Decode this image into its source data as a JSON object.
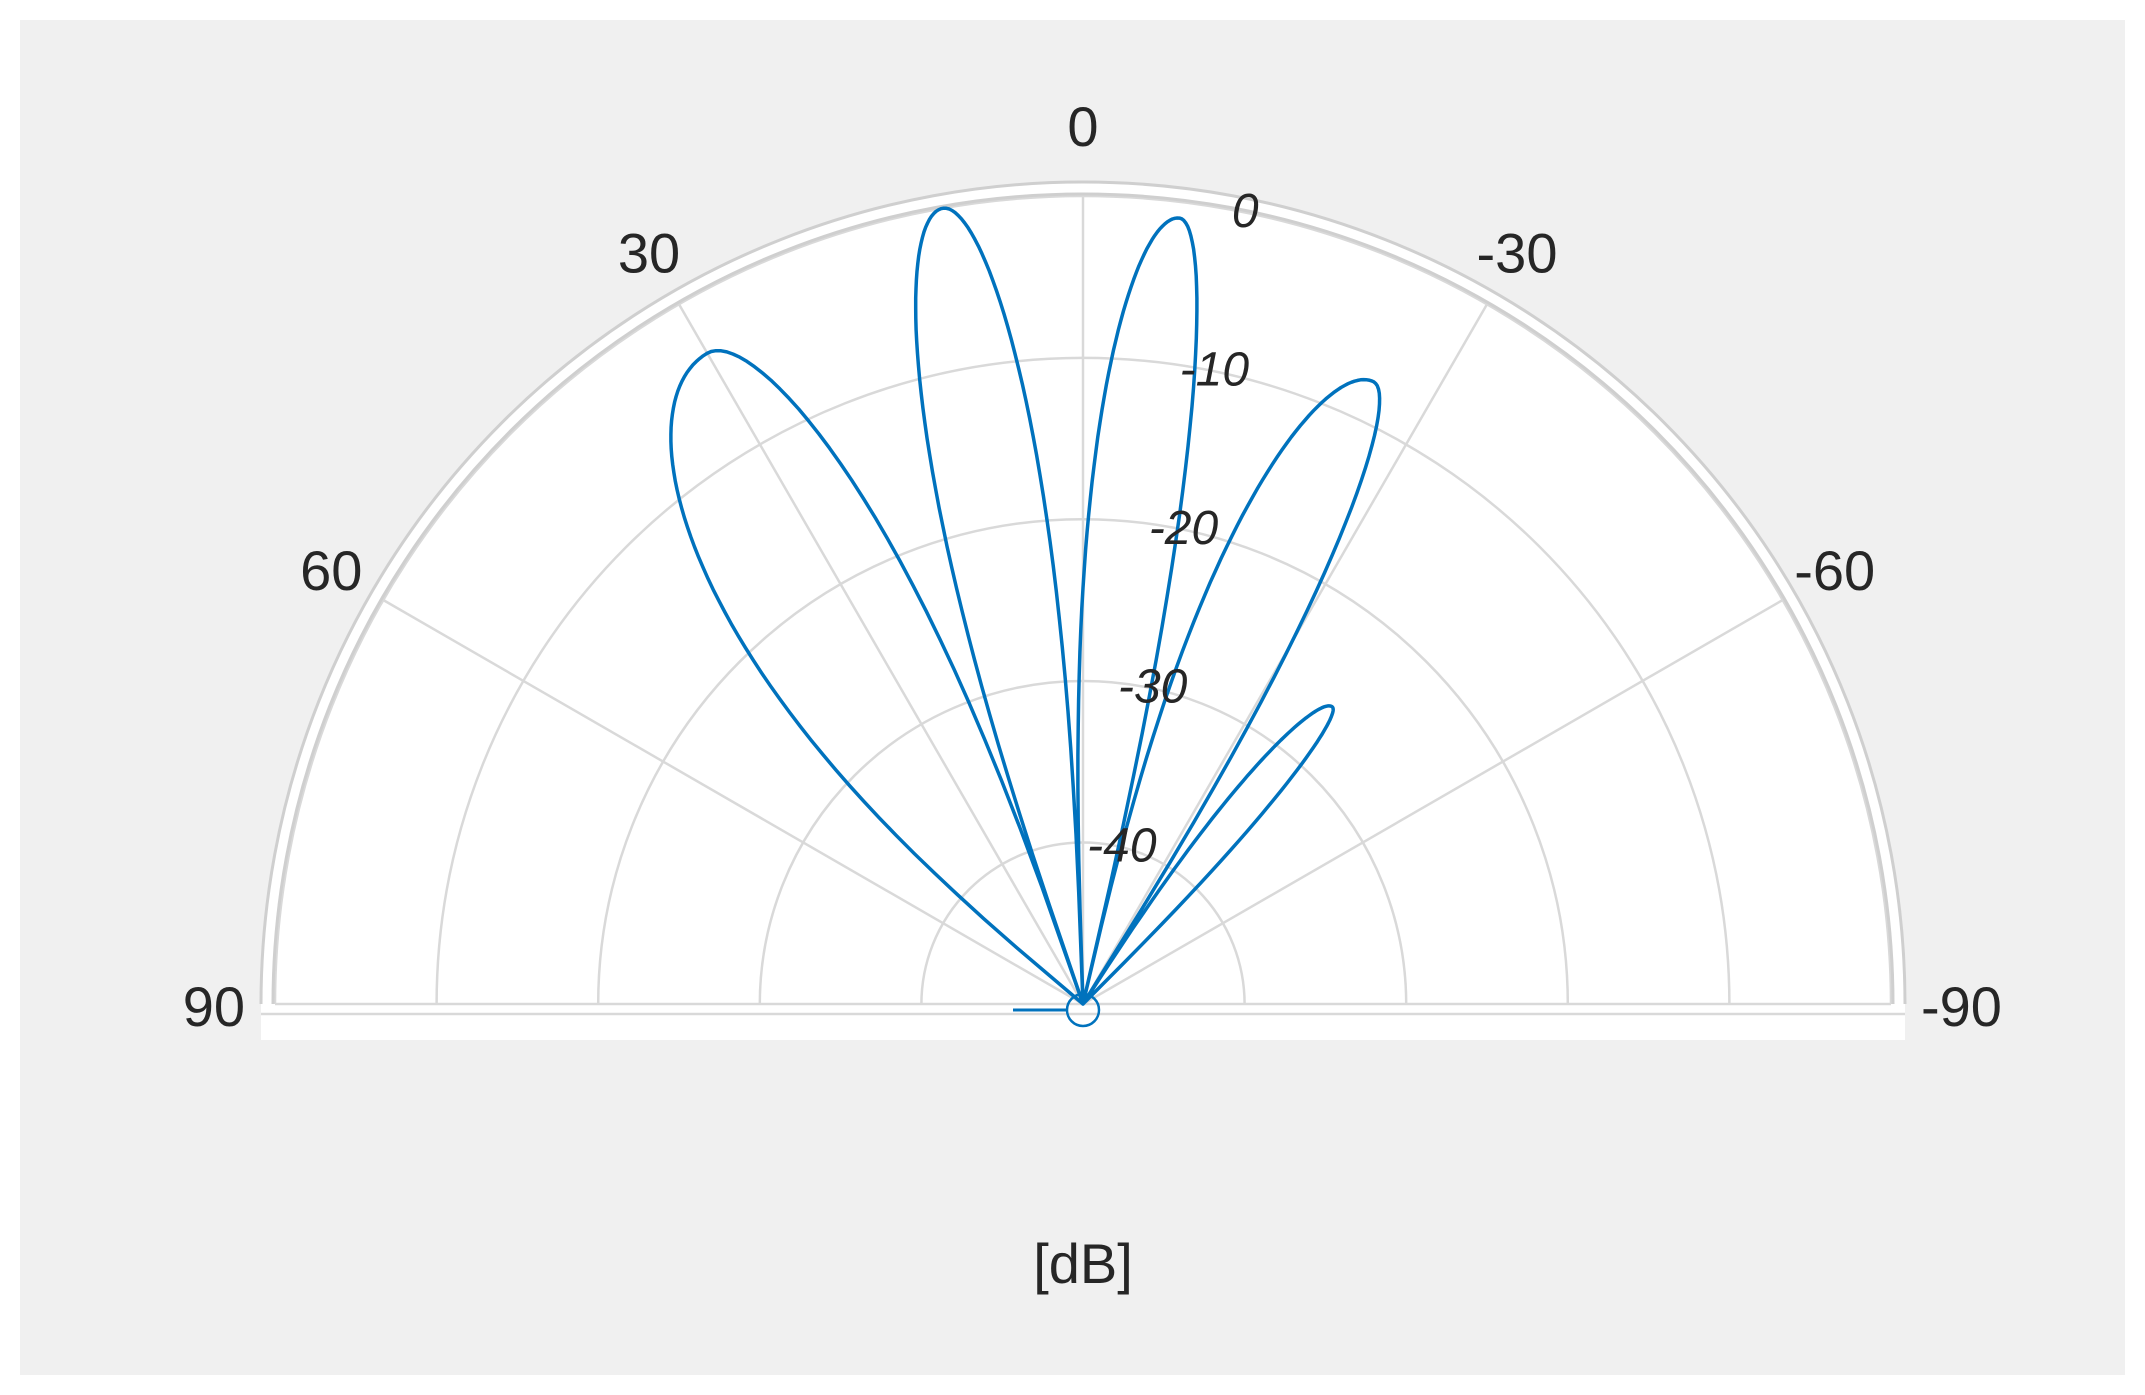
{
  "chart_data": {
    "type": "line",
    "polar": true,
    "angle_range_deg": [
      -90,
      90
    ],
    "zero_direction": "top",
    "angle_direction": "counterclockwise",
    "angle_ticks": [
      "90",
      "60",
      "30",
      "0",
      "-30",
      "-60",
      "-90"
    ],
    "angle_tick_values": [
      90,
      60,
      30,
      0,
      -30,
      -60,
      -90
    ],
    "radial_ticks": [
      "0",
      "-10",
      "-20",
      "-30",
      "-40"
    ],
    "radial_tick_values": [
      0,
      -10,
      -20,
      -30,
      -40
    ],
    "rlim": [
      -50,
      0
    ],
    "rlabel": "[dB]",
    "grid": true,
    "line_color": "#0072bd",
    "series": [
      {
        "lobes": [
          {
            "angle_min": -45,
            "angle_max": -33,
            "peak_angle": -40,
            "peak_db": -26
          },
          {
            "angle_min": -32,
            "angle_max": -13,
            "peak_angle": -25,
            "peak_db": -7.5
          },
          {
            "angle_min": -13,
            "angle_max": 2,
            "peak_angle": -7,
            "peak_db": -1
          },
          {
            "angle_min": 2,
            "angle_max": 19,
            "peak_angle": 10,
            "peak_db": 0
          },
          {
            "angle_min": 19,
            "angle_max": 50,
            "peak_angle": 30,
            "peak_db": -3.5
          }
        ]
      }
    ]
  }
}
